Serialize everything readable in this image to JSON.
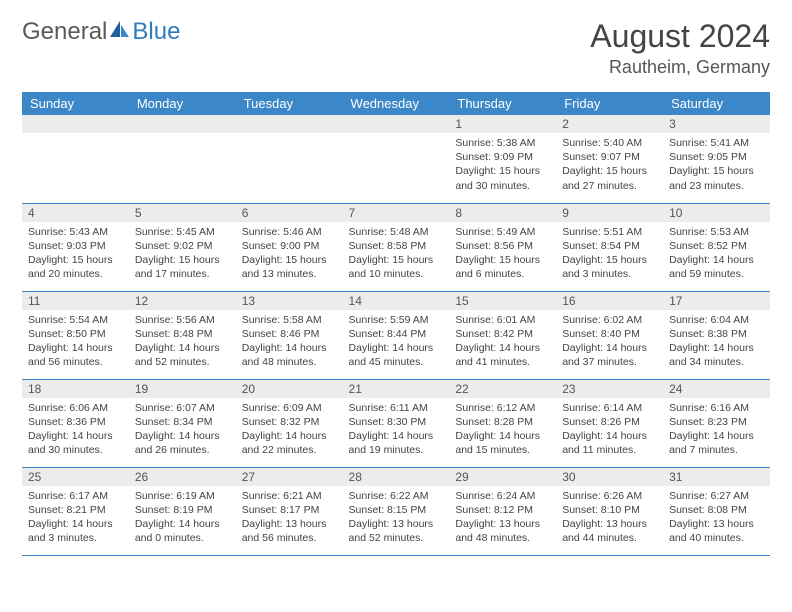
{
  "brand": {
    "part1": "General",
    "part2": "Blue"
  },
  "title": {
    "month": "August 2024",
    "location": "Rautheim, Germany"
  },
  "colors": {
    "header_bg": "#3b87c8",
    "header_text": "#ffffff",
    "daynum_bg": "#ececec",
    "border": "#3b87c8",
    "brand_gray": "#5a5a5a",
    "brand_blue": "#2f7bbf"
  },
  "weekdays": [
    "Sunday",
    "Monday",
    "Tuesday",
    "Wednesday",
    "Thursday",
    "Friday",
    "Saturday"
  ],
  "weeks": [
    [
      null,
      null,
      null,
      null,
      {
        "n": "1",
        "sr": "5:38 AM",
        "ss": "9:09 PM",
        "dl": "15 hours and 30 minutes."
      },
      {
        "n": "2",
        "sr": "5:40 AM",
        "ss": "9:07 PM",
        "dl": "15 hours and 27 minutes."
      },
      {
        "n": "3",
        "sr": "5:41 AM",
        "ss": "9:05 PM",
        "dl": "15 hours and 23 minutes."
      }
    ],
    [
      {
        "n": "4",
        "sr": "5:43 AM",
        "ss": "9:03 PM",
        "dl": "15 hours and 20 minutes."
      },
      {
        "n": "5",
        "sr": "5:45 AM",
        "ss": "9:02 PM",
        "dl": "15 hours and 17 minutes."
      },
      {
        "n": "6",
        "sr": "5:46 AM",
        "ss": "9:00 PM",
        "dl": "15 hours and 13 minutes."
      },
      {
        "n": "7",
        "sr": "5:48 AM",
        "ss": "8:58 PM",
        "dl": "15 hours and 10 minutes."
      },
      {
        "n": "8",
        "sr": "5:49 AM",
        "ss": "8:56 PM",
        "dl": "15 hours and 6 minutes."
      },
      {
        "n": "9",
        "sr": "5:51 AM",
        "ss": "8:54 PM",
        "dl": "15 hours and 3 minutes."
      },
      {
        "n": "10",
        "sr": "5:53 AM",
        "ss": "8:52 PM",
        "dl": "14 hours and 59 minutes."
      }
    ],
    [
      {
        "n": "11",
        "sr": "5:54 AM",
        "ss": "8:50 PM",
        "dl": "14 hours and 56 minutes."
      },
      {
        "n": "12",
        "sr": "5:56 AM",
        "ss": "8:48 PM",
        "dl": "14 hours and 52 minutes."
      },
      {
        "n": "13",
        "sr": "5:58 AM",
        "ss": "8:46 PM",
        "dl": "14 hours and 48 minutes."
      },
      {
        "n": "14",
        "sr": "5:59 AM",
        "ss": "8:44 PM",
        "dl": "14 hours and 45 minutes."
      },
      {
        "n": "15",
        "sr": "6:01 AM",
        "ss": "8:42 PM",
        "dl": "14 hours and 41 minutes."
      },
      {
        "n": "16",
        "sr": "6:02 AM",
        "ss": "8:40 PM",
        "dl": "14 hours and 37 minutes."
      },
      {
        "n": "17",
        "sr": "6:04 AM",
        "ss": "8:38 PM",
        "dl": "14 hours and 34 minutes."
      }
    ],
    [
      {
        "n": "18",
        "sr": "6:06 AM",
        "ss": "8:36 PM",
        "dl": "14 hours and 30 minutes."
      },
      {
        "n": "19",
        "sr": "6:07 AM",
        "ss": "8:34 PM",
        "dl": "14 hours and 26 minutes."
      },
      {
        "n": "20",
        "sr": "6:09 AM",
        "ss": "8:32 PM",
        "dl": "14 hours and 22 minutes."
      },
      {
        "n": "21",
        "sr": "6:11 AM",
        "ss": "8:30 PM",
        "dl": "14 hours and 19 minutes."
      },
      {
        "n": "22",
        "sr": "6:12 AM",
        "ss": "8:28 PM",
        "dl": "14 hours and 15 minutes."
      },
      {
        "n": "23",
        "sr": "6:14 AM",
        "ss": "8:26 PM",
        "dl": "14 hours and 11 minutes."
      },
      {
        "n": "24",
        "sr": "6:16 AM",
        "ss": "8:23 PM",
        "dl": "14 hours and 7 minutes."
      }
    ],
    [
      {
        "n": "25",
        "sr": "6:17 AM",
        "ss": "8:21 PM",
        "dl": "14 hours and 3 minutes."
      },
      {
        "n": "26",
        "sr": "6:19 AM",
        "ss": "8:19 PM",
        "dl": "14 hours and 0 minutes."
      },
      {
        "n": "27",
        "sr": "6:21 AM",
        "ss": "8:17 PM",
        "dl": "13 hours and 56 minutes."
      },
      {
        "n": "28",
        "sr": "6:22 AM",
        "ss": "8:15 PM",
        "dl": "13 hours and 52 minutes."
      },
      {
        "n": "29",
        "sr": "6:24 AM",
        "ss": "8:12 PM",
        "dl": "13 hours and 48 minutes."
      },
      {
        "n": "30",
        "sr": "6:26 AM",
        "ss": "8:10 PM",
        "dl": "13 hours and 44 minutes."
      },
      {
        "n": "31",
        "sr": "6:27 AM",
        "ss": "8:08 PM",
        "dl": "13 hours and 40 minutes."
      }
    ]
  ],
  "labels": {
    "sunrise": "Sunrise: ",
    "sunset": "Sunset: ",
    "daylight": "Daylight: "
  }
}
